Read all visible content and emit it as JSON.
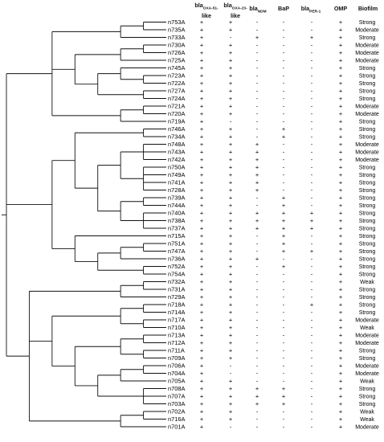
{
  "headers": {
    "oxa51": {
      "main": "bla",
      "sub": "OXA-51-",
      "line2": "like"
    },
    "oxa23": {
      "main": "bla",
      "sub": "OXA-23-",
      "line2": "like"
    },
    "ndm": {
      "main": "bla",
      "sub": "NDM"
    },
    "bap": {
      "main": "BaP"
    },
    "per": {
      "main": "bla",
      "sub": "PER-1"
    },
    "omp": {
      "main": "OMP"
    },
    "biofilm": {
      "main": "Biofilm"
    }
  },
  "rows": [
    {
      "id": "n753A",
      "oxa51": "+",
      "oxa23": "+",
      "ndm": "-",
      "bap": "-",
      "per": "-",
      "omp": "+",
      "biofilm": "Strong"
    },
    {
      "id": "n735A",
      "oxa51": "+",
      "oxa23": "+",
      "ndm": "-",
      "bap": "-",
      "per": "-",
      "omp": "+",
      "biofilm": "Moderate"
    },
    {
      "id": "n733A",
      "oxa51": "+",
      "oxa23": "-",
      "ndm": "+",
      "bap": "-",
      "per": "+",
      "omp": "+",
      "biofilm": "Strong"
    },
    {
      "id": "n730A",
      "oxa51": "+",
      "oxa23": "+",
      "ndm": "-",
      "bap": "-",
      "per": "-",
      "omp": "+",
      "biofilm": "Moderate"
    },
    {
      "id": "n726A",
      "oxa51": "+",
      "oxa23": "+",
      "ndm": "-",
      "bap": "-",
      "per": "-",
      "omp": "+",
      "biofilm": "Moderate"
    },
    {
      "id": "n725A",
      "oxa51": "+",
      "oxa23": "+",
      "ndm": "-",
      "bap": "-",
      "per": "-",
      "omp": "+",
      "biofilm": "Moderate"
    },
    {
      "id": "n745A",
      "oxa51": "+",
      "oxa23": "+",
      "ndm": "-",
      "bap": "-",
      "per": "-",
      "omp": "+",
      "biofilm": "Strong"
    },
    {
      "id": "n723A",
      "oxa51": "+",
      "oxa23": "+",
      "ndm": "-",
      "bap": "-",
      "per": "-",
      "omp": "+",
      "biofilm": "Strong"
    },
    {
      "id": "n722A",
      "oxa51": "+",
      "oxa23": "+",
      "ndm": "-",
      "bap": "-",
      "per": "-",
      "omp": "+",
      "biofilm": "Strong"
    },
    {
      "id": "n727A",
      "oxa51": "+",
      "oxa23": "+",
      "ndm": "-",
      "bap": "-",
      "per": "-",
      "omp": "+",
      "biofilm": "Strong"
    },
    {
      "id": "n724A",
      "oxa51": "+",
      "oxa23": "+",
      "ndm": "-",
      "bap": "-",
      "per": "-",
      "omp": "+",
      "biofilm": "Strong"
    },
    {
      "id": "n721A",
      "oxa51": "+",
      "oxa23": "+",
      "ndm": "-",
      "bap": "-",
      "per": "-",
      "omp": "+",
      "biofilm": "Moderate"
    },
    {
      "id": "n720A",
      "oxa51": "+",
      "oxa23": "+",
      "ndm": "-",
      "bap": "-",
      "per": "-",
      "omp": "+",
      "biofilm": "Moderate"
    },
    {
      "id": "n719A",
      "oxa51": "+",
      "oxa23": "-",
      "ndm": "-",
      "bap": "-",
      "per": "-",
      "omp": "+",
      "biofilm": "Strong"
    },
    {
      "id": "n746A",
      "oxa51": "+",
      "oxa23": "+",
      "ndm": "-",
      "bap": "+",
      "per": "-",
      "omp": "+",
      "biofilm": "Strong"
    },
    {
      "id": "n734A",
      "oxa51": "+",
      "oxa23": "+",
      "ndm": "-",
      "bap": "+",
      "per": "-",
      "omp": "+",
      "biofilm": "Strong"
    },
    {
      "id": "n748A",
      "oxa51": "+",
      "oxa23": "+",
      "ndm": "+",
      "bap": "-",
      "per": "-",
      "omp": "+",
      "biofilm": "Moderate"
    },
    {
      "id": "n743A",
      "oxa51": "+",
      "oxa23": "+",
      "ndm": "+",
      "bap": "-",
      "per": "-",
      "omp": "+",
      "biofilm": "Moderate"
    },
    {
      "id": "n742A",
      "oxa51": "+",
      "oxa23": "+",
      "ndm": "+",
      "bap": "-",
      "per": "-",
      "omp": "+",
      "biofilm": "Moderate"
    },
    {
      "id": "n750A",
      "oxa51": "+",
      "oxa23": "+",
      "ndm": "+",
      "bap": "-",
      "per": "-",
      "omp": "+",
      "biofilm": "Strong"
    },
    {
      "id": "n749A",
      "oxa51": "+",
      "oxa23": "+",
      "ndm": "+",
      "bap": "-",
      "per": "-",
      "omp": "+",
      "biofilm": "Strong"
    },
    {
      "id": "n741A",
      "oxa51": "+",
      "oxa23": "+",
      "ndm": "+",
      "bap": "-",
      "per": "-",
      "omp": "+",
      "biofilm": "Strong"
    },
    {
      "id": "n728A",
      "oxa51": "+",
      "oxa23": "+",
      "ndm": "+",
      "bap": "-",
      "per": "-",
      "omp": "+",
      "biofilm": "Strong"
    },
    {
      "id": "n739A",
      "oxa51": "+",
      "oxa23": "+",
      "ndm": "-",
      "bap": "+",
      "per": "-",
      "omp": "+",
      "biofilm": "Strong"
    },
    {
      "id": "n744A",
      "oxa51": "+",
      "oxa23": "+",
      "ndm": "-",
      "bap": "+",
      "per": "-",
      "omp": "+",
      "biofilm": "Strong"
    },
    {
      "id": "n740A",
      "oxa51": "+",
      "oxa23": "+",
      "ndm": "+",
      "bap": "+",
      "per": "+",
      "omp": "+",
      "biofilm": "Strong"
    },
    {
      "id": "n738A",
      "oxa51": "+",
      "oxa23": "+",
      "ndm": "+",
      "bap": "+",
      "per": "+",
      "omp": "+",
      "biofilm": "Strong"
    },
    {
      "id": "n737A",
      "oxa51": "+",
      "oxa23": "+",
      "ndm": "+",
      "bap": "+",
      "per": "+",
      "omp": "+",
      "biofilm": "Strong"
    },
    {
      "id": "n715A",
      "oxa51": "+",
      "oxa23": "+",
      "ndm": "-",
      "bap": "+",
      "per": "-",
      "omp": "+",
      "biofilm": "Strong"
    },
    {
      "id": "n751A",
      "oxa51": "+",
      "oxa23": "+",
      "ndm": "-",
      "bap": "+",
      "per": "-",
      "omp": "+",
      "biofilm": "Strong"
    },
    {
      "id": "n747A",
      "oxa51": "+",
      "oxa23": "+",
      "ndm": "-",
      "bap": "+",
      "per": "+",
      "omp": "+",
      "biofilm": "Strong"
    },
    {
      "id": "n736A",
      "oxa51": "+",
      "oxa23": "+",
      "ndm": "+",
      "bap": "-",
      "per": "-",
      "omp": "+",
      "biofilm": "Strong"
    },
    {
      "id": "n752A",
      "oxa51": "+",
      "oxa23": "+",
      "ndm": "-",
      "bap": "+",
      "per": "-",
      "omp": "+",
      "biofilm": "Strong"
    },
    {
      "id": "n754A",
      "oxa51": "+",
      "oxa23": "+",
      "ndm": "-",
      "bap": "-",
      "per": "-",
      "omp": "+",
      "biofilm": "Strong"
    },
    {
      "id": "n732A",
      "oxa51": "+",
      "oxa23": "+",
      "ndm": "-",
      "bap": "-",
      "per": "-",
      "omp": "+",
      "biofilm": "Weak"
    },
    {
      "id": "n731A",
      "oxa51": "+",
      "oxa23": "+",
      "ndm": "-",
      "bap": "-",
      "per": "-",
      "omp": "+",
      "biofilm": "Strong"
    },
    {
      "id": "n729A",
      "oxa51": "+",
      "oxa23": "+",
      "ndm": "-",
      "bap": "-",
      "per": "-",
      "omp": "+",
      "biofilm": "Strong"
    },
    {
      "id": "n718A",
      "oxa51": "+",
      "oxa23": "+",
      "ndm": "-",
      "bap": "-",
      "per": "+",
      "omp": "+",
      "biofilm": "Strong"
    },
    {
      "id": "n714A",
      "oxa51": "+",
      "oxa23": "+",
      "ndm": "-",
      "bap": "-",
      "per": "-",
      "omp": "+",
      "biofilm": "Strong"
    },
    {
      "id": "n717A",
      "oxa51": "+",
      "oxa23": "+",
      "ndm": "-",
      "bap": "-",
      "per": "-",
      "omp": "+",
      "biofilm": "Moderate"
    },
    {
      "id": "n710A",
      "oxa51": "+",
      "oxa23": "+",
      "ndm": "-",
      "bap": "-",
      "per": "-",
      "omp": "+",
      "biofilm": "Weak"
    },
    {
      "id": "n713A",
      "oxa51": "+",
      "oxa23": "+",
      "ndm": "-",
      "bap": "-",
      "per": "-",
      "omp": "+",
      "biofilm": "Moderate"
    },
    {
      "id": "n712A",
      "oxa51": "+",
      "oxa23": "+",
      "ndm": "-",
      "bap": "-",
      "per": "-",
      "omp": "+",
      "biofilm": "Moderate"
    },
    {
      "id": "n711A",
      "oxa51": "+",
      "oxa23": "+",
      "ndm": "-",
      "bap": "-",
      "per": "-",
      "omp": "+",
      "biofilm": "Strong"
    },
    {
      "id": "n709A",
      "oxa51": "+",
      "oxa23": "+",
      "ndm": "-",
      "bap": "-",
      "per": "-",
      "omp": "+",
      "biofilm": "Strong"
    },
    {
      "id": "n706A",
      "oxa51": "+",
      "oxa23": "-",
      "ndm": "-",
      "bap": "-",
      "per": "-",
      "omp": "+",
      "biofilm": "Moderate"
    },
    {
      "id": "n704A",
      "oxa51": "+",
      "oxa23": "-",
      "ndm": "-",
      "bap": "-",
      "per": "-",
      "omp": "+",
      "biofilm": "Moderate"
    },
    {
      "id": "n705A",
      "oxa51": "+",
      "oxa23": "+",
      "ndm": "-",
      "bap": "-",
      "per": "-",
      "omp": "+",
      "biofilm": "Weak"
    },
    {
      "id": "n708A",
      "oxa51": "+",
      "oxa23": "+",
      "ndm": "+",
      "bap": "+",
      "per": "-",
      "omp": "+",
      "biofilm": "Strong"
    },
    {
      "id": "n707A",
      "oxa51": "+",
      "oxa23": "+",
      "ndm": "+",
      "bap": "+",
      "per": "-",
      "omp": "+",
      "biofilm": "Strong"
    },
    {
      "id": "n703A",
      "oxa51": "+",
      "oxa23": "+",
      "ndm": "+",
      "bap": "+",
      "per": "-",
      "omp": "+",
      "biofilm": "Strong"
    },
    {
      "id": "n702A",
      "oxa51": "+",
      "oxa23": "+",
      "ndm": "-",
      "bap": "-",
      "per": "-",
      "omp": "+",
      "biofilm": "Weak"
    },
    {
      "id": "n716A",
      "oxa51": "+",
      "oxa23": "+",
      "ndm": "-",
      "bap": "-",
      "per": "-",
      "omp": "+",
      "biofilm": "Weak"
    },
    {
      "id": "n701A",
      "oxa51": "+",
      "oxa23": "-",
      "ndm": "-",
      "bap": "-",
      "per": "-",
      "omp": "+",
      "biofilm": "Moderate"
    }
  ]
}
